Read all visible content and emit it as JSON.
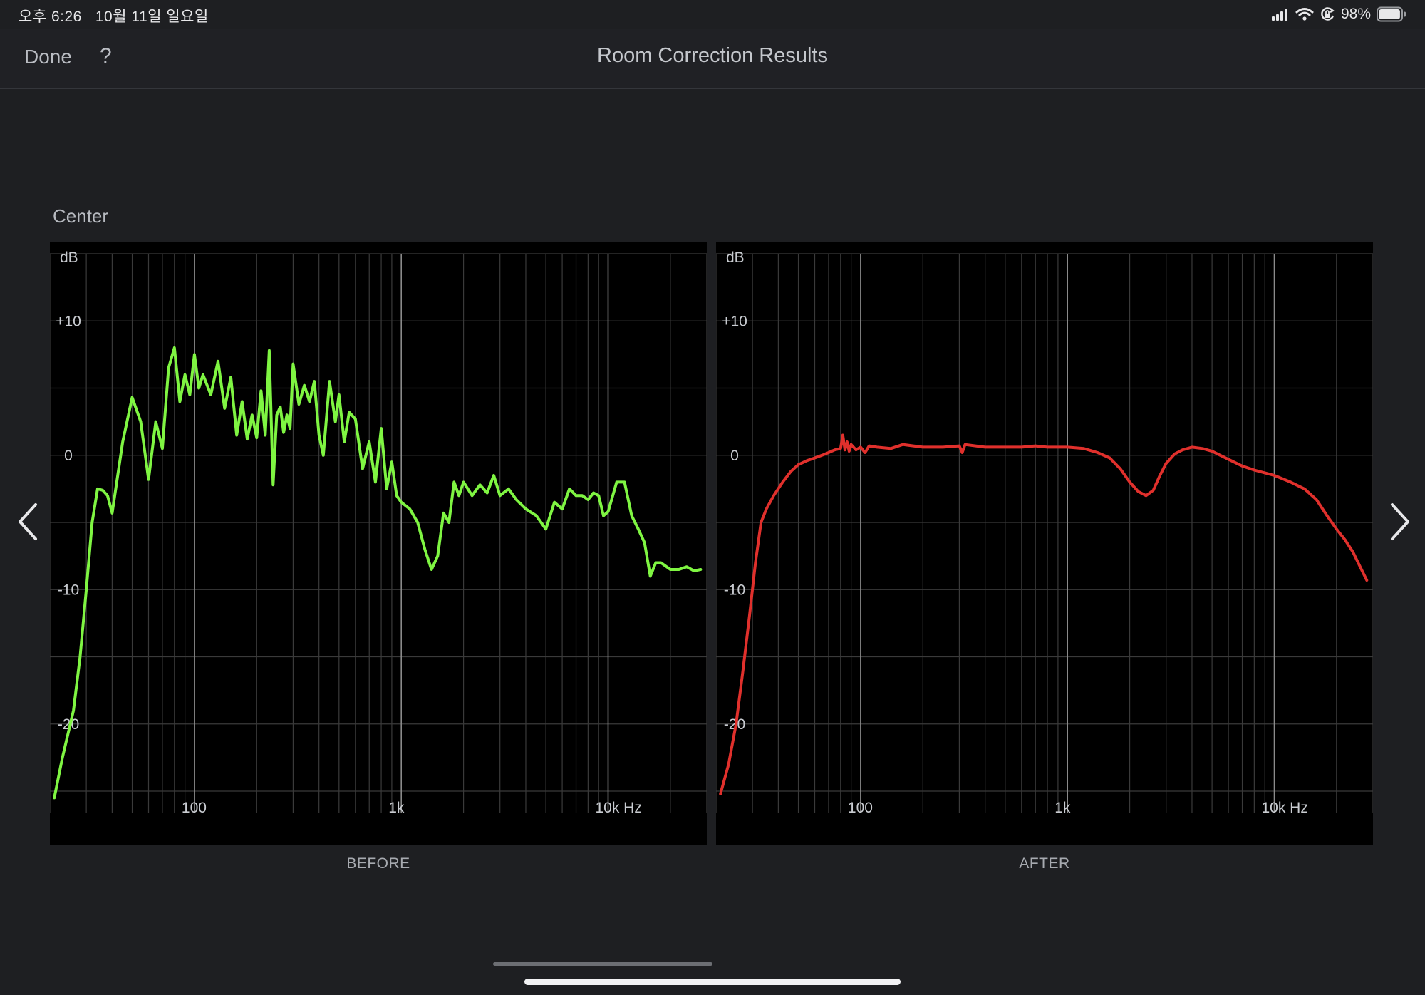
{
  "status_bar": {
    "time": "오후 6:26",
    "date": "10월 11일 일요일",
    "battery": "98%",
    "battery_level": 0.98,
    "icons": [
      "cellular-signal-icon",
      "wifi-icon",
      "orientation-lock-icon",
      "battery-icon"
    ]
  },
  "navbar": {
    "done_label": "Done",
    "help_label": "?",
    "title": "Room Correction Results"
  },
  "channel": "Center",
  "nav_arrows": [
    "chevron-left-icon",
    "chevron-right-icon"
  ],
  "colors": {
    "background": "#1e1f22",
    "plot_background": "#000000",
    "grid": "#3a3a3a",
    "before_line": "#7ff542",
    "after_line": "#e0302c"
  },
  "chart_data": [
    {
      "type": "line",
      "caption": "BEFORE",
      "ylabel": "dB",
      "x_scale": "log",
      "xlim": [
        20,
        30000
      ],
      "ylim": [
        -25,
        10
      ],
      "y_ticks": [
        "+10",
        "0",
        "-10",
        "-20"
      ],
      "y_tick_values": [
        10,
        0,
        -10,
        -20
      ],
      "x_ticks": [
        "100",
        "1k",
        "10k Hz"
      ],
      "x_tick_values": [
        100,
        1000,
        10000
      ],
      "grid": true,
      "series": [
        {
          "x": [
            21,
            23,
            26,
            28,
            30,
            32,
            34,
            36,
            38,
            40,
            45,
            50,
            55,
            60,
            65,
            70,
            75,
            80,
            85,
            90,
            95,
            100,
            105,
            110,
            120,
            130,
            140,
            150,
            160,
            170,
            180,
            190,
            200,
            210,
            220,
            230,
            240,
            250,
            260,
            270,
            280,
            290,
            300,
            320,
            340,
            360,
            380,
            400,
            420,
            450,
            480,
            500,
            530,
            560,
            600,
            650,
            700,
            750,
            800,
            850,
            900,
            950,
            1000,
            1100,
            1200,
            1300,
            1400,
            1500,
            1600,
            1700,
            1800,
            1900,
            2000,
            2200,
            2400,
            2600,
            2800,
            3000,
            3300,
            3600,
            4000,
            4500,
            5000,
            5500,
            6000,
            6500,
            7000,
            7500,
            8000,
            8500,
            9000,
            9500,
            10000,
            11000,
            12000,
            13000,
            14000,
            15000,
            16000,
            17000,
            18000,
            20000,
            22000,
            24000,
            26000,
            28000
          ],
          "y": [
            -25.5,
            -22.5,
            -19,
            -15,
            -10,
            -5,
            -2.5,
            -2.6,
            -3,
            -4.3,
            1,
            4.3,
            2.5,
            -1.8,
            2.5,
            0.5,
            6.5,
            8,
            4,
            6,
            4.5,
            7.5,
            5,
            6,
            4.5,
            7,
            3.5,
            5.8,
            1.5,
            4,
            1.2,
            3,
            1.3,
            4.8,
            1.5,
            7.8,
            -2.2,
            3,
            3.6,
            1.7,
            3,
            2,
            6.8,
            3.8,
            5.2,
            4,
            5.5,
            1.5,
            0,
            5.5,
            2.5,
            4.5,
            1,
            3.2,
            2.7,
            -1,
            1,
            -2,
            2,
            -2.5,
            -0.5,
            -3,
            -3.5,
            -4,
            -5,
            -7,
            -8.5,
            -7.5,
            -4.3,
            -5,
            -2,
            -3,
            -2,
            -3,
            -2.2,
            -2.8,
            -1.5,
            -3,
            -2.5,
            -3.3,
            -4,
            -4.5,
            -5.5,
            -3.5,
            -4,
            -2.5,
            -3,
            -3,
            -3.3,
            -2.8,
            -3,
            -4.5,
            -4.2,
            -2,
            -2,
            -4.5,
            -5.5,
            -6.5,
            -9,
            -8,
            -8,
            -8.5,
            -8.5,
            -8.3,
            -8.6,
            -8.5
          ]
        }
      ]
    },
    {
      "type": "line",
      "caption": "AFTER",
      "ylabel": "dB",
      "x_scale": "log",
      "xlim": [
        20,
        30000
      ],
      "ylim": [
        -25,
        10
      ],
      "y_ticks": [
        "+10",
        "0",
        "-10",
        "-20"
      ],
      "y_tick_values": [
        10,
        0,
        -10,
        -20
      ],
      "x_ticks": [
        "100",
        "1k",
        "10k Hz"
      ],
      "x_tick_values": [
        100,
        1000,
        10000
      ],
      "grid": true,
      "series": [
        {
          "x": [
            21,
            23,
            25,
            27,
            29,
            31,
            33,
            35,
            38,
            42,
            46,
            50,
            55,
            60,
            65,
            70,
            75,
            80,
            82,
            84,
            86,
            88,
            90,
            95,
            100,
            105,
            110,
            120,
            140,
            160,
            200,
            250,
            300,
            310,
            320,
            400,
            500,
            600,
            700,
            800,
            1000,
            1200,
            1400,
            1600,
            1800,
            2000,
            2200,
            2400,
            2600,
            2800,
            3000,
            3300,
            3600,
            4000,
            4500,
            5000,
            6000,
            7000,
            8000,
            10000,
            12000,
            14000,
            16000,
            18000,
            20000,
            22000,
            24000,
            26000,
            28000
          ],
          "y": [
            -25.2,
            -23,
            -20,
            -16,
            -12,
            -8,
            -5,
            -4,
            -3,
            -2,
            -1.2,
            -0.7,
            -0.4,
            -0.2,
            0,
            0.2,
            0.4,
            0.5,
            1.5,
            0.4,
            1.0,
            0.3,
            0.8,
            0.4,
            0.6,
            0.2,
            0.7,
            0.6,
            0.5,
            0.8,
            0.6,
            0.6,
            0.7,
            0.2,
            0.8,
            0.6,
            0.6,
            0.6,
            0.7,
            0.6,
            0.6,
            0.5,
            0.2,
            -0.2,
            -1,
            -2,
            -2.7,
            -3,
            -2.6,
            -1.5,
            -0.6,
            0.1,
            0.4,
            0.6,
            0.5,
            0.3,
            -0.3,
            -0.8,
            -1.1,
            -1.5,
            -2,
            -2.5,
            -3.3,
            -4.5,
            -5.5,
            -6.3,
            -7.2,
            -8.3,
            -9.3
          ]
        }
      ]
    }
  ]
}
